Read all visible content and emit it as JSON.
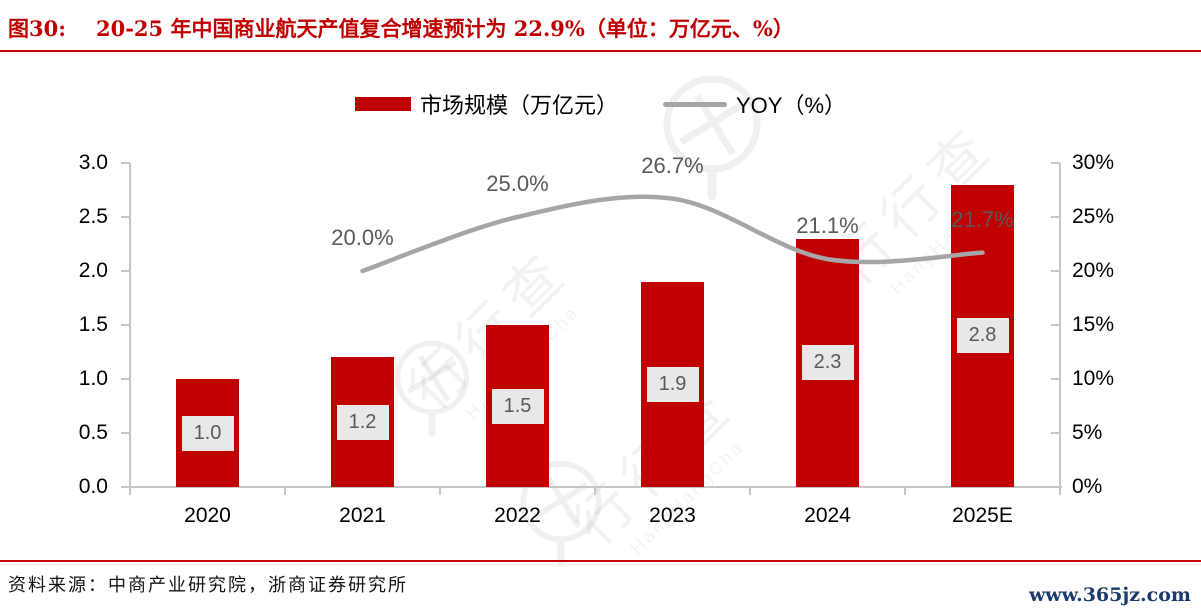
{
  "page": {
    "background": "#FFFFFF",
    "accent_red": "#C00000",
    "rule_color": "#C40000"
  },
  "header": {
    "figure_label": "图30:",
    "title": "20-25 年中国商业航天产值复合增速预计为 22.9%（单位：万亿元、%）"
  },
  "legend": {
    "bar_label": "市场规模（万亿元）",
    "line_label": "YOY（%）",
    "bar_color": "#C00000",
    "line_color": "#A6A6A6"
  },
  "chart_data": {
    "type": "bar+line combo",
    "categories": [
      "2020",
      "2021",
      "2022",
      "2023",
      "2024",
      "2025E"
    ],
    "series": [
      {
        "name": "市场规模（万亿元）",
        "type": "bar",
        "axis": "left",
        "color": "#C00000",
        "values": [
          1.0,
          1.2,
          1.5,
          1.9,
          2.3,
          2.8
        ],
        "data_labels": [
          "1.0",
          "1.2",
          "1.5",
          "1.9",
          "2.3",
          "2.8"
        ]
      },
      {
        "name": "YOY（%）",
        "type": "line",
        "axis": "right",
        "color": "#A6A6A6",
        "values": [
          null,
          20.0,
          25.0,
          26.7,
          21.1,
          21.7
        ],
        "data_labels": [
          "",
          "20.0%",
          "25.0%",
          "26.7%",
          "21.1%",
          "21.7%"
        ]
      }
    ],
    "left_axis": {
      "min": 0,
      "max": 3.0,
      "step": 0.5,
      "tick_labels": [
        "0.0",
        "0.5",
        "1.0",
        "1.5",
        "2.0",
        "2.5",
        "3.0"
      ]
    },
    "right_axis": {
      "min": 0,
      "max": 30,
      "step": 5,
      "tick_labels": [
        "0%",
        "5%",
        "10%",
        "15%",
        "20%",
        "25%",
        "30%"
      ]
    },
    "grid": false,
    "legend_position": "top"
  },
  "watermark": {
    "text": "行行查",
    "subtext": "HangHangCha"
  },
  "footer": {
    "source": "资料来源：中商产业研究院，浙商证券研究所",
    "site": "www.365jz.com"
  }
}
